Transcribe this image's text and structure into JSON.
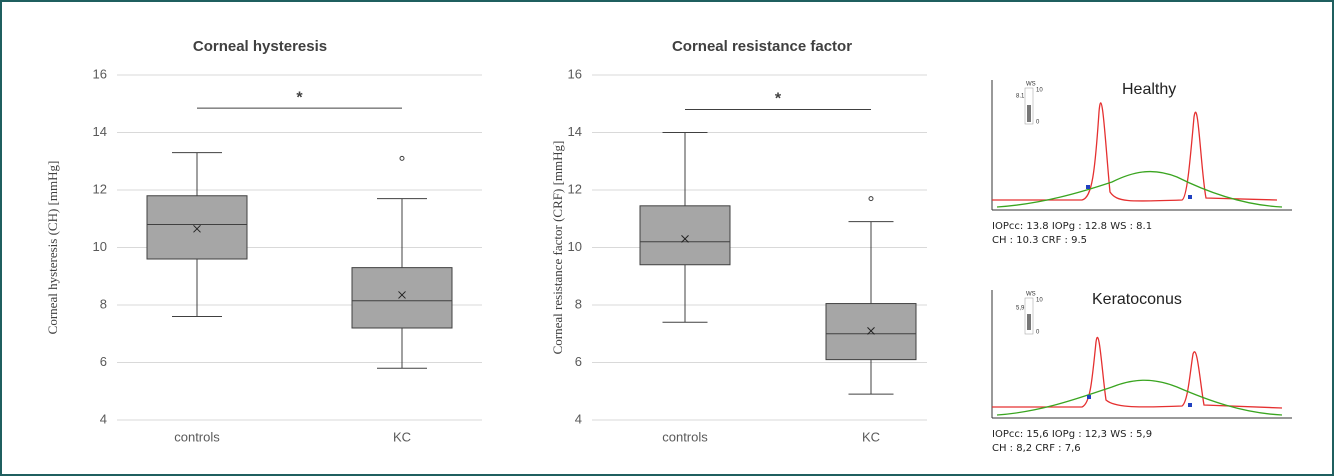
{
  "chart_data": [
    {
      "type": "box",
      "title": "Corneal hysteresis",
      "ylabel": "Corneal hysteresis (CH) [mmHg]",
      "categories": [
        "controls",
        "KC"
      ],
      "color": "#a6a6a6",
      "boxes": [
        {
          "min": 7.6,
          "q1": 9.6,
          "median": 10.8,
          "q3": 11.8,
          "max": 13.3,
          "mean": 10.65,
          "outliers": []
        },
        {
          "min": 5.8,
          "q1": 7.2,
          "median": 8.15,
          "q3": 9.3,
          "max": 11.7,
          "mean": 8.35,
          "outliers": [
            13.1
          ]
        }
      ],
      "significance": {
        "y": 14.85,
        "label": "*"
      },
      "ylim": [
        4,
        16
      ],
      "yticks": [
        4,
        6,
        8,
        10,
        12,
        14,
        16
      ],
      "grid": true
    },
    {
      "type": "box",
      "title": "Corneal resistance factor",
      "ylabel": "Corneal resistance factor (CRF) [mmHg]",
      "categories": [
        "controls",
        "KC"
      ],
      "color": "#a6a6a6",
      "boxes": [
        {
          "min": 7.4,
          "q1": 9.4,
          "median": 10.2,
          "q3": 11.45,
          "max": 14.0,
          "mean": 10.3,
          "outliers": []
        },
        {
          "min": 4.9,
          "q1": 6.1,
          "median": 7.0,
          "q3": 8.05,
          "max": 10.9,
          "mean": 7.1,
          "outliers": [
            11.7
          ]
        }
      ],
      "significance": {
        "y": 14.8,
        "label": "*"
      },
      "ylim": [
        4,
        16
      ],
      "yticks": [
        4,
        6,
        8,
        10,
        12,
        14,
        16
      ],
      "grid": true
    }
  ],
  "waveforms": [
    {
      "title": "Healthy",
      "gauge_label": "WS",
      "gauge_max": "10",
      "gauge_value": "8.1",
      "gauge_min": "0",
      "readout": [
        "IOPcc:  13.8  IOPg  :  12.8   WS : 8.1",
        "CH    :  10.3  CRF  :  9.5"
      ]
    },
    {
      "title": "Keratoconus",
      "gauge_label": "WS",
      "gauge_max": "10",
      "gauge_value": "5,9",
      "gauge_min": "0",
      "readout": [
        "IOPcc:  15,6  IOPg  :  12,3    WS : 5,9",
        "CH    :  8,2   CRF  :  7,6"
      ]
    }
  ]
}
